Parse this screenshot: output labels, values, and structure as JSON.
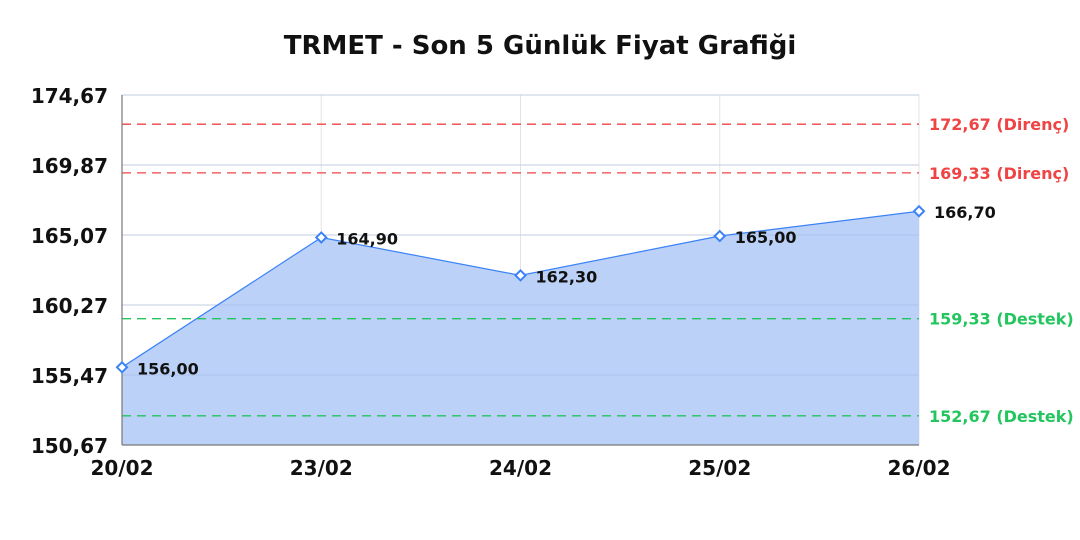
{
  "chart_data": {
    "type": "area",
    "title": "TRMET - Son 5 Günlük Fiyat Grafiği",
    "xlabel": "",
    "ylabel": "",
    "categories": [
      "20/02",
      "23/02",
      "24/02",
      "25/02",
      "26/02"
    ],
    "values": [
      156.0,
      164.9,
      162.3,
      165.0,
      166.7
    ],
    "value_labels": [
      "156,00",
      "164,90",
      "162,30",
      "165,00",
      "166,70"
    ],
    "ylim": [
      150.67,
      174.67
    ],
    "yticks": [
      150.67,
      155.47,
      160.27,
      165.07,
      169.87,
      174.67
    ],
    "ytick_labels": [
      "150,67",
      "155,47",
      "160,27",
      "165,07",
      "169,87",
      "174,67"
    ],
    "grid": true,
    "reference_lines": [
      {
        "value": 172.67,
        "label": "172,67 (Direnç)",
        "color": "#ef4444"
      },
      {
        "value": 169.33,
        "label": "169,33 (Direnç)",
        "color": "#ef4444"
      },
      {
        "value": 159.33,
        "label": "159,33 (Destek)",
        "color": "#22c55e"
      },
      {
        "value": 152.67,
        "label": "152,67 (Destek)",
        "color": "#22c55e"
      }
    ],
    "colors": {
      "line": "#3b82f6",
      "fill": "#b7cff8"
    }
  }
}
